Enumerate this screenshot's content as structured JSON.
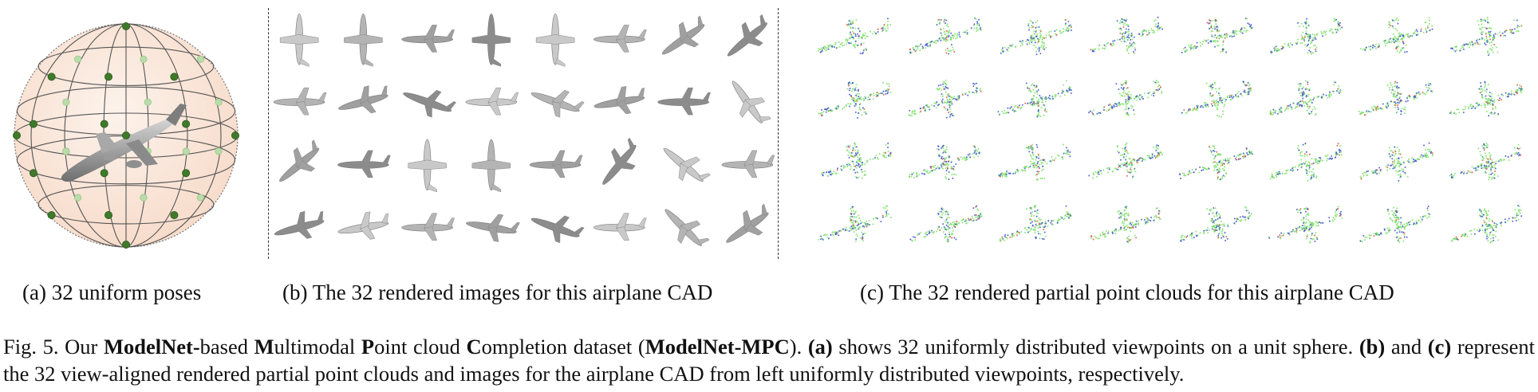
{
  "subcaptions": {
    "a": "(a) 32 uniform poses",
    "b": "(b) The 32 rendered images for this airplane CAD",
    "c": "(c) The 32 rendered partial point clouds for this airplane CAD"
  },
  "caption": {
    "p1": "Fig. 5.  Our ",
    "b1": "ModelNet-",
    "p2": "based ",
    "b2": "M",
    "p3": "ultimodal ",
    "b3": "P",
    "p4": "oint cloud ",
    "b4": "C",
    "p5": "ompletion dataset (",
    "b5": "ModelNet-MPC",
    "p6": "). ",
    "b6": "(a)",
    "p7": " shows 32 uniformly distributed viewpoints on a unit sphere. ",
    "b7": "(b)",
    "p8": " and ",
    "b8": "(c)",
    "p9": " represent the 32 view-aligned rendered partial point clouds and images for the airplane CAD from left uniformly distributed viewpoints, respectively."
  },
  "colors": {
    "sphere_fill": "#fbe9dc",
    "viewpoint_dark": "#3f7a2a",
    "viewpoint_light": "#b9dcaa",
    "airplane_gray": "#9a9a9a",
    "cloud_green": "#7ee06a",
    "cloud_blue": "#3a55c8",
    "cloud_red": "#e0553a"
  }
}
